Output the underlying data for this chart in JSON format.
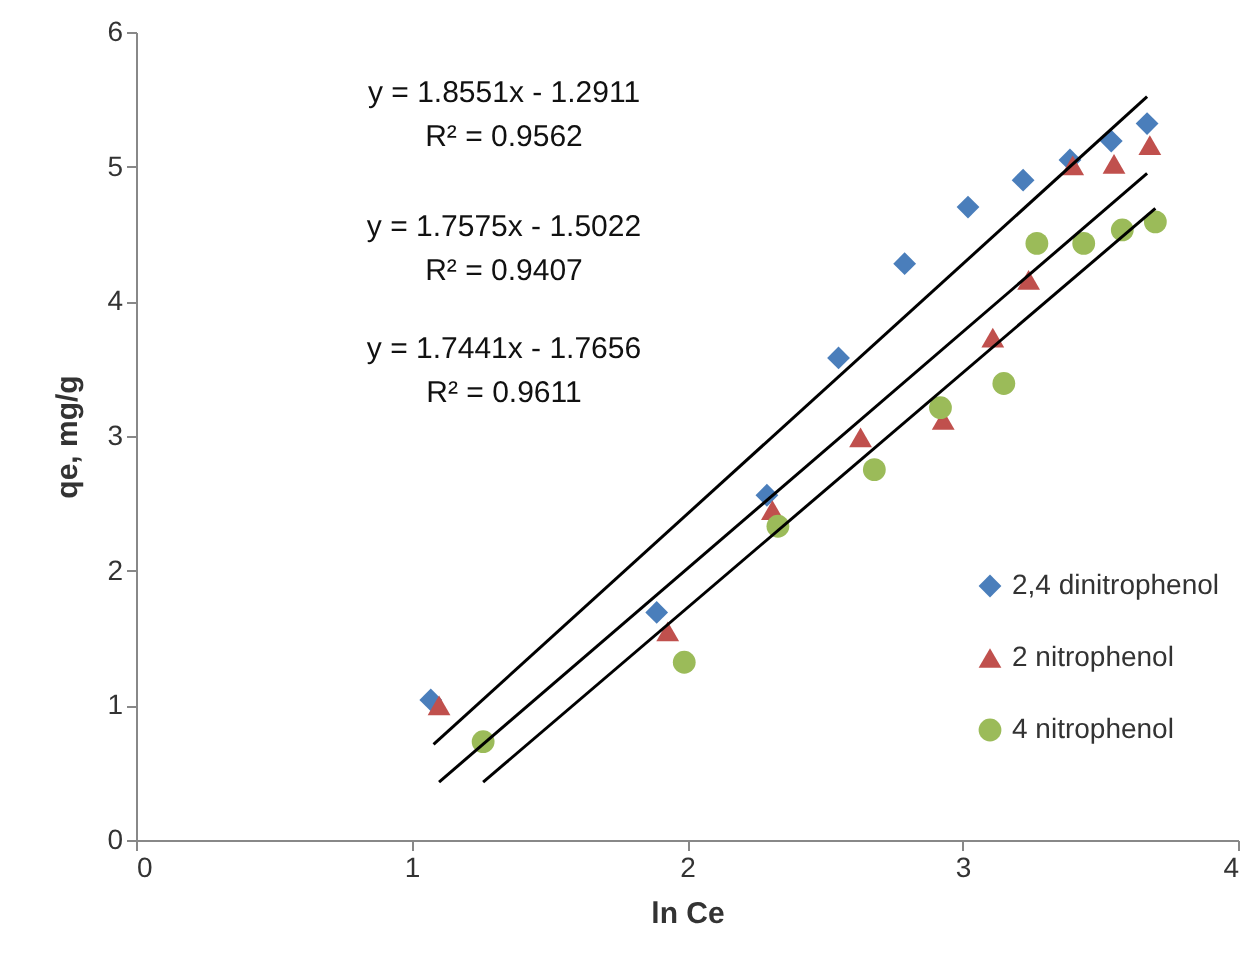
{
  "chart_data": {
    "type": "scatter",
    "xlabel": "ln Ce",
    "ylabel": "qe, mg/g",
    "xlim": [
      0,
      4
    ],
    "ylim": [
      0,
      6
    ],
    "xticks": [
      0,
      1,
      2,
      3,
      4
    ],
    "yticks": [
      0,
      1,
      2,
      3,
      4,
      5,
      6
    ],
    "grid": false,
    "legend": "right",
    "annotations": [
      "y = 1.8551x - 1.2911",
      "R² = 0.9562",
      "y = 1.7575x - 1.5022",
      "R² = 0.9407",
      "y = 1.7441x - 1.7656",
      "R² = 0.9611"
    ],
    "series": [
      {
        "name": "2,4 dinitrophenol",
        "color": "#4a7ebb",
        "marker": "diamond",
        "x": [
          1.07,
          1.89,
          2.29,
          2.55,
          2.79,
          3.02,
          3.22,
          3.39,
          3.54,
          3.67
        ],
        "values": [
          1.04,
          1.69,
          2.56,
          3.58,
          4.28,
          4.7,
          4.9,
          5.05,
          5.19,
          5.32
        ]
      },
      {
        "name": "2 nitrophenol",
        "color": "#c0504d",
        "marker": "triangle",
        "x": [
          1.1,
          1.93,
          2.31,
          2.63,
          2.93,
          3.11,
          3.24,
          3.4,
          3.55,
          3.68
        ],
        "values": [
          1.0,
          1.55,
          2.45,
          2.99,
          3.12,
          3.73,
          4.16,
          5.01,
          5.02,
          5.16
        ]
      },
      {
        "name": "4 nitrophenol",
        "color": "#9bbb59",
        "marker": "circle",
        "x": [
          1.26,
          1.99,
          2.33,
          2.68,
          2.92,
          3.15,
          3.27,
          3.44,
          3.58,
          3.7
        ],
        "values": [
          0.73,
          1.32,
          2.33,
          2.75,
          3.21,
          3.39,
          4.43,
          4.43,
          4.53,
          4.59
        ]
      },
      {
        "type": "line",
        "color": "#000000",
        "x": [
          1.08,
          3.67
        ],
        "values": [
          0.71,
          5.52
        ]
      },
      {
        "type": "line",
        "color": "#000000",
        "x": [
          1.1,
          3.67
        ],
        "values": [
          0.43,
          4.95
        ]
      },
      {
        "type": "line",
        "color": "#000000",
        "x": [
          1.26,
          3.7
        ],
        "values": [
          0.43,
          4.69
        ]
      }
    ]
  }
}
